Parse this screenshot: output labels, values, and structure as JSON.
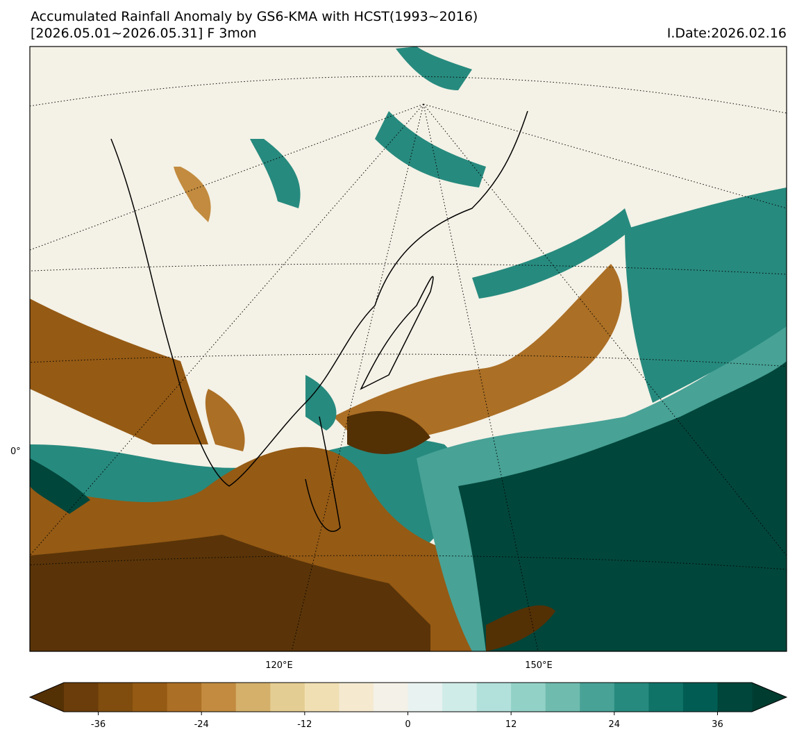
{
  "title": "Accumulated Rainfall Anomaly by GS6-KMA with HCST(1993~2016)",
  "subtitle": "[2026.05.01~2026.05.31] F 3mon",
  "init_date": "I.Date:2026.02.16",
  "map": {
    "lon_labels": [
      "120°E",
      "150°E"
    ],
    "lat_labels": [
      "0°"
    ]
  },
  "colorbar": {
    "bins": [
      -40,
      -36,
      -32,
      -28,
      -24,
      -20,
      -16,
      -12,
      -8,
      -4,
      0,
      4,
      8,
      12,
      16,
      20,
      24,
      28,
      32,
      36,
      40
    ],
    "colors": [
      "#6a3d0a",
      "#804d0e",
      "#955a14",
      "#ab6f25",
      "#c28b3f",
      "#d4b06a",
      "#e4cd92",
      "#f0dfb3",
      "#f5ead0",
      "#f4f1e8",
      "#e8f2f0",
      "#d0ece8",
      "#b2e0da",
      "#92d1c6",
      "#6fbcaf",
      "#48a296",
      "#278a7e",
      "#107368",
      "#015d53",
      "#01463b"
    ],
    "extend_colors": [
      "#543005",
      "#003c30"
    ],
    "xlim": [
      -40,
      40
    ],
    "xticks": [
      -36,
      -24,
      -12,
      0,
      12,
      24,
      36
    ]
  }
}
